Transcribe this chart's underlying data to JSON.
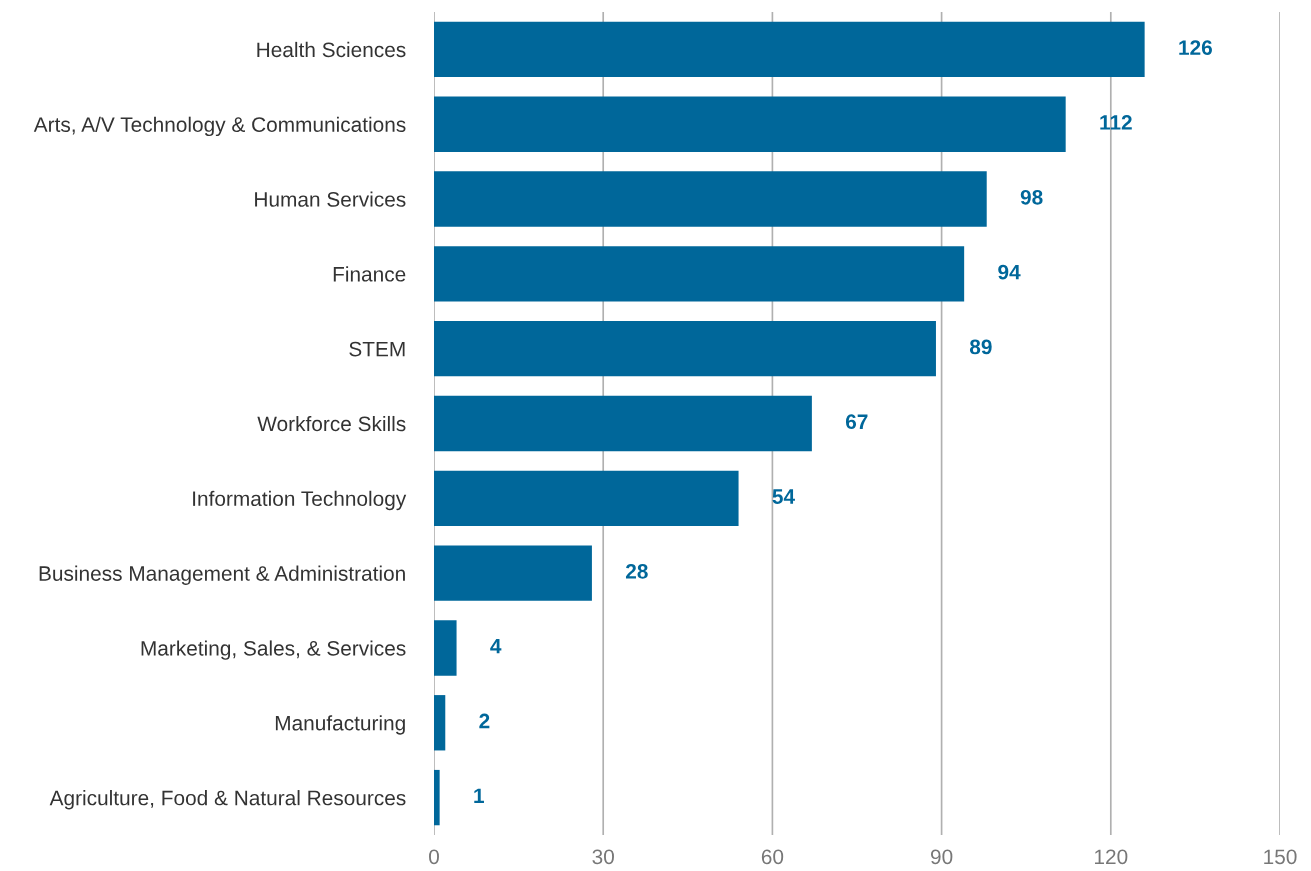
{
  "chart_data": {
    "type": "bar",
    "orientation": "horizontal",
    "categories": [
      "Health Sciences",
      "Arts, A/V Technology & Communications",
      "Human Services",
      "Finance",
      "STEM",
      "Workforce Skills",
      "Information Technology",
      "Business Management & Administration",
      "Marketing, Sales, & Services",
      "Manufacturing",
      "Agriculture, Food & Natural Resources"
    ],
    "values": [
      126,
      112,
      98,
      94,
      89,
      67,
      54,
      28,
      4,
      2,
      1
    ],
    "color": "#00679a",
    "xlim": [
      0,
      150
    ],
    "xticks": [
      0,
      30,
      60,
      90,
      120,
      150
    ],
    "grid": "x",
    "data_labels": true
  }
}
